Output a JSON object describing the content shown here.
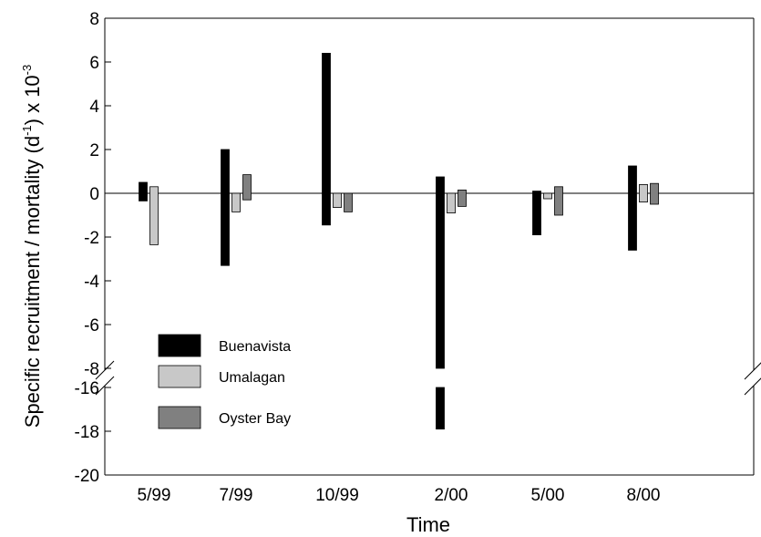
{
  "chart_data": {
    "type": "bar",
    "xlabel": "Time",
    "ylabel": "Specific recruitment / mortality (d",
    "ylabel_sup": "-1",
    "ylabel_tail": ")  x 10",
    "ylabel_exp": "-3",
    "categories": [
      "5/99",
      "7/99",
      "10/99",
      "2/00",
      "5/00",
      "8/00"
    ],
    "y_ticks_upper": [
      "8",
      "6",
      "4",
      "2",
      "0",
      "-2",
      "-4",
      "-6",
      "-8"
    ],
    "y_ticks_lower": [
      "-16",
      "-18",
      "-20"
    ],
    "ylim": [
      -20,
      8
    ],
    "axis_break": [
      -15.3,
      -8.2
    ],
    "grid": false,
    "legend_position": "lower-left",
    "series": [
      {
        "name": "Buenavista",
        "color": "#000000",
        "ranges": [
          [
            -0.35,
            0.5
          ],
          [
            -3.3,
            2.0
          ],
          [
            -1.45,
            6.4
          ],
          [
            -17.9,
            0.75
          ],
          [
            -1.9,
            0.1
          ],
          [
            -2.6,
            1.25
          ]
        ]
      },
      {
        "name": "Umalagan",
        "color": "#c8c8c8",
        "ranges": [
          [
            -2.35,
            0.3
          ],
          [
            -0.85,
            0.0
          ],
          [
            -0.65,
            0.0
          ],
          [
            -0.9,
            0.0
          ],
          [
            -0.25,
            0.0
          ],
          [
            -0.4,
            0.4
          ]
        ]
      },
      {
        "name": "Oyster Bay",
        "color": "#808080",
        "ranges": [
          [
            0,
            0
          ],
          [
            -0.3,
            0.85
          ],
          [
            -0.85,
            0.0
          ],
          [
            -0.6,
            0.15
          ],
          [
            -1.0,
            0.3
          ],
          [
            -0.5,
            0.45
          ]
        ]
      }
    ]
  }
}
